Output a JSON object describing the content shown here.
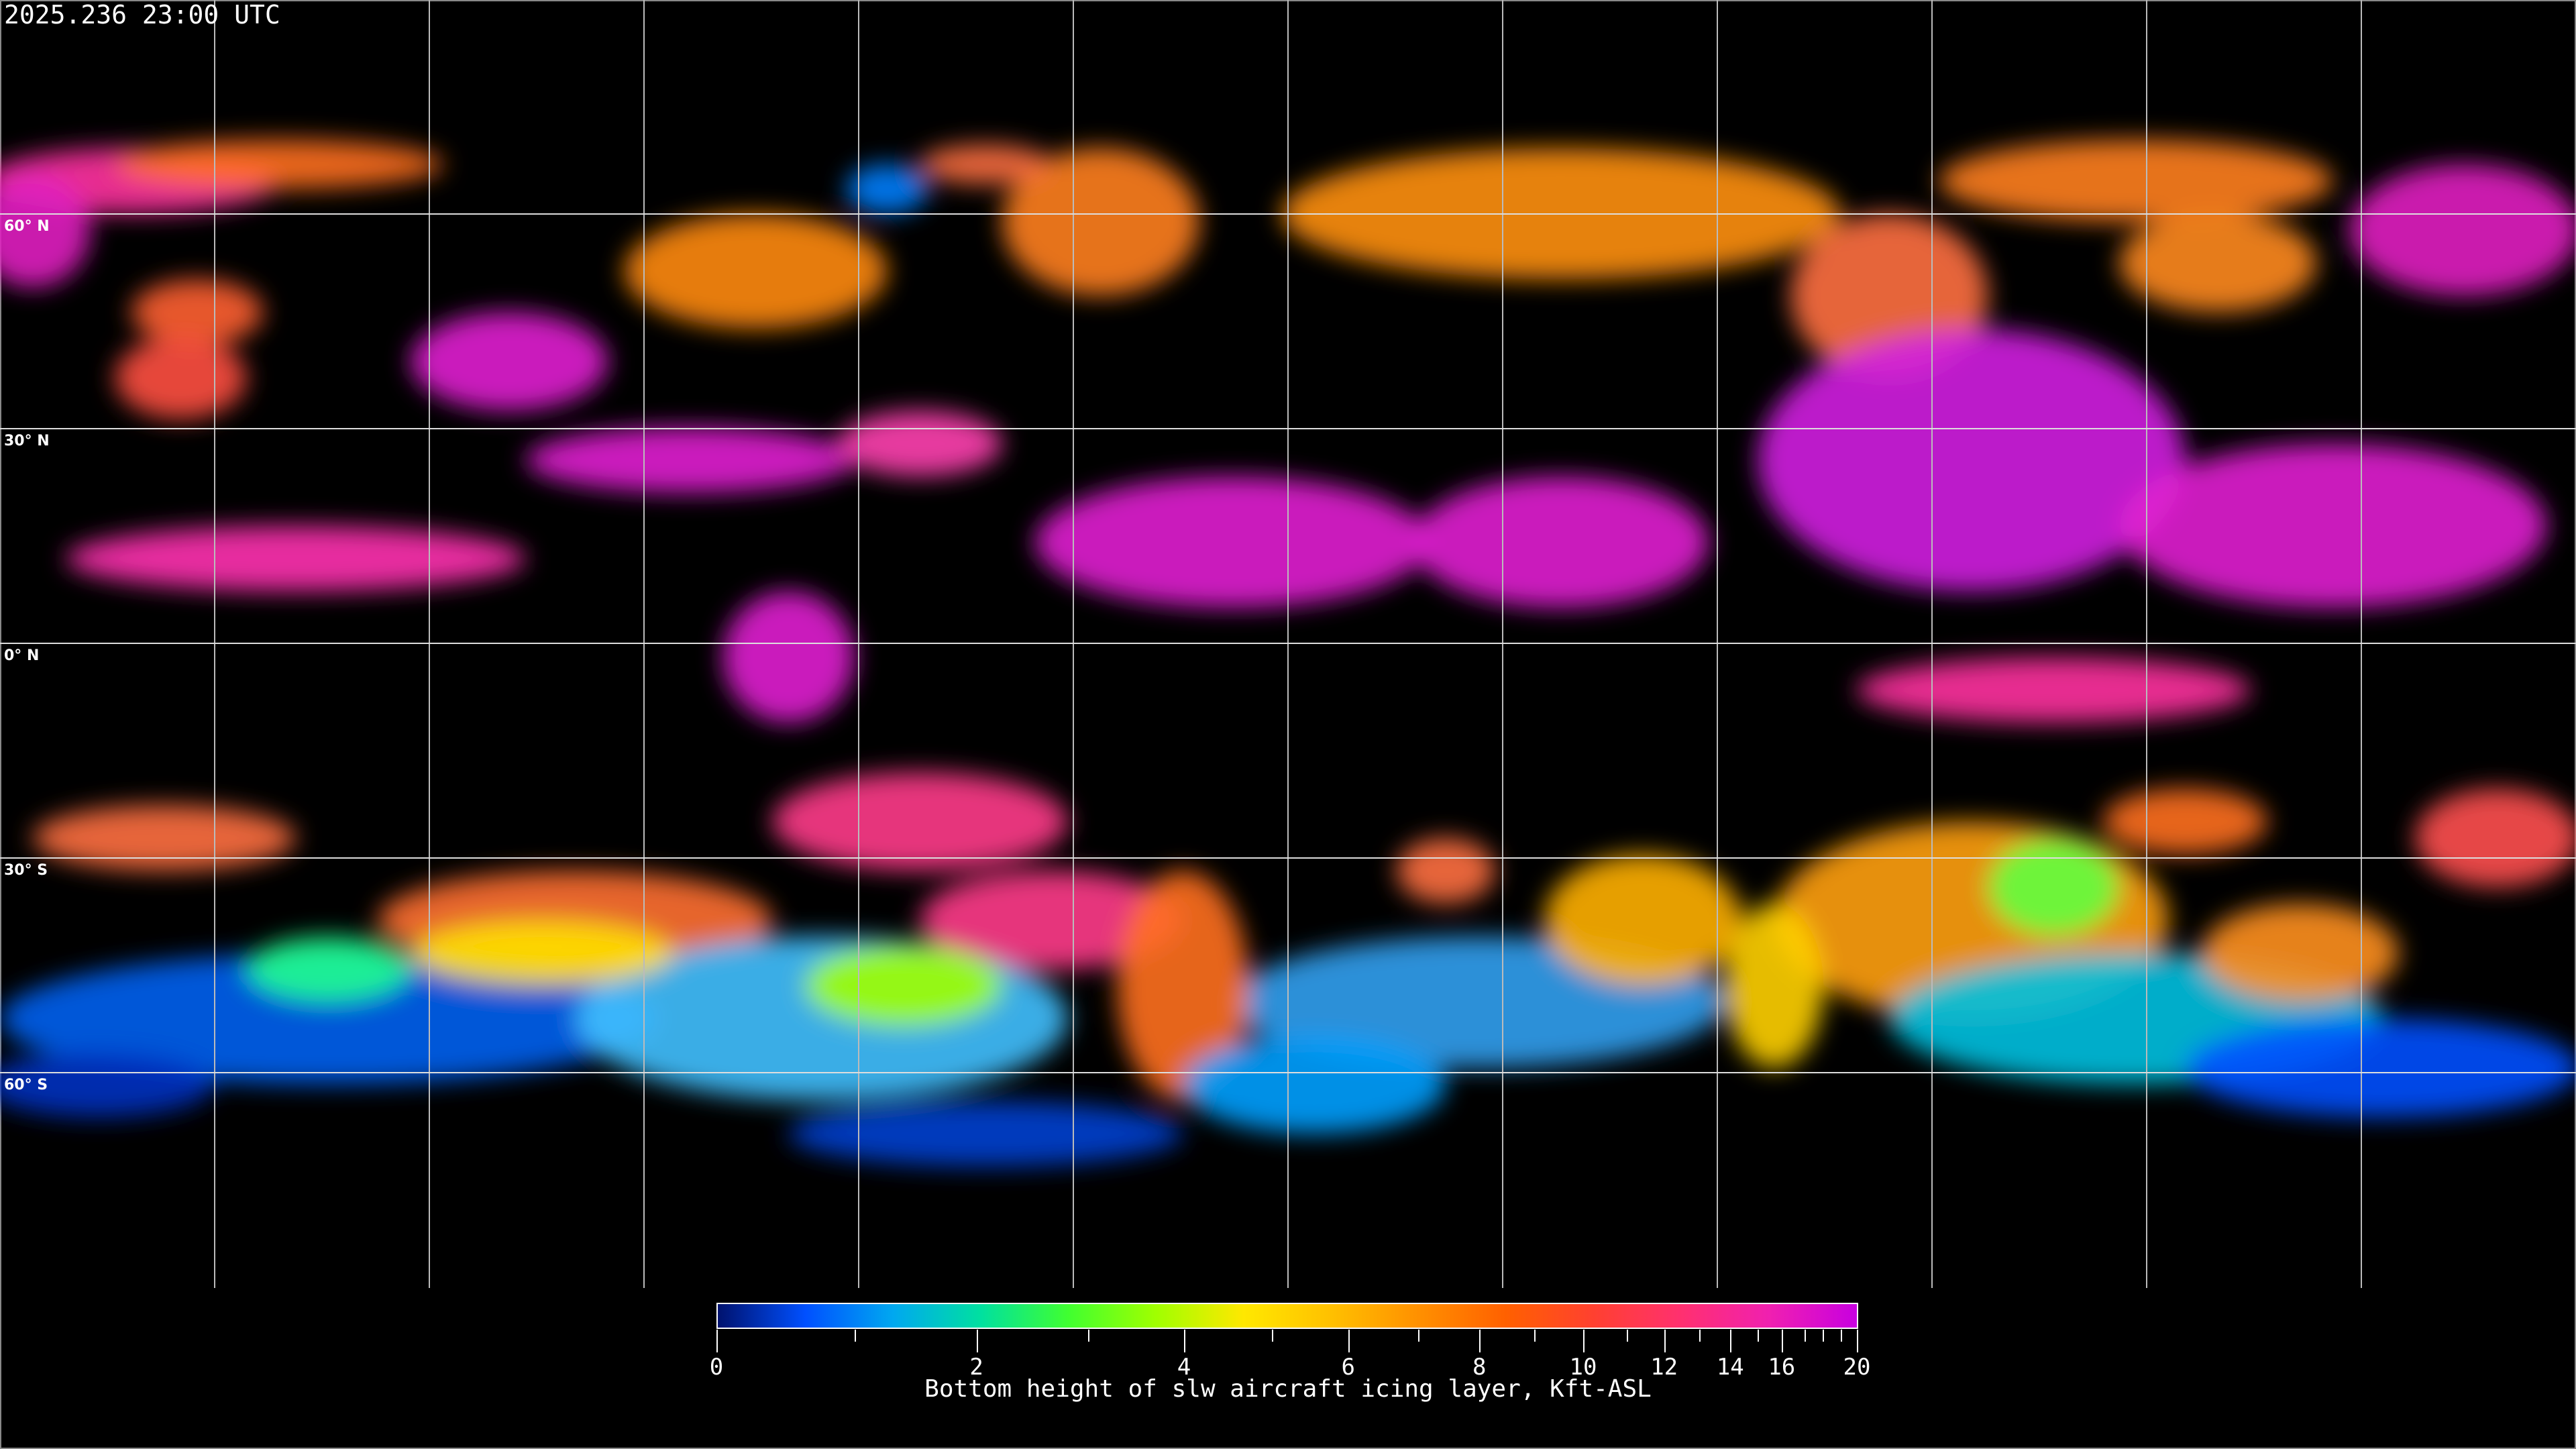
{
  "timestamp": "2025.236 23:00 UTC",
  "map": {
    "projection": "equirectangular",
    "gridlines": true,
    "lat_labels": [
      "60° N",
      "30° N",
      "0° N",
      "30° S",
      "60° S"
    ]
  },
  "colorbar": {
    "title": "Bottom height of slw aircraft icing layer, Kft-ASL",
    "range": [
      0,
      20
    ],
    "tick_labels": [
      "0",
      "2",
      "4",
      "6",
      "8",
      "10",
      "12",
      "14",
      "16",
      "20"
    ],
    "colors": [
      "#00126e",
      "#0050ff",
      "#00a8f0",
      "#00e0a0",
      "#40ff30",
      "#a0ff00",
      "#ffe800",
      "#ffc000",
      "#ff9000",
      "#ff6000",
      "#ff4030",
      "#ff3070",
      "#f020b0",
      "#c800e0"
    ]
  }
}
